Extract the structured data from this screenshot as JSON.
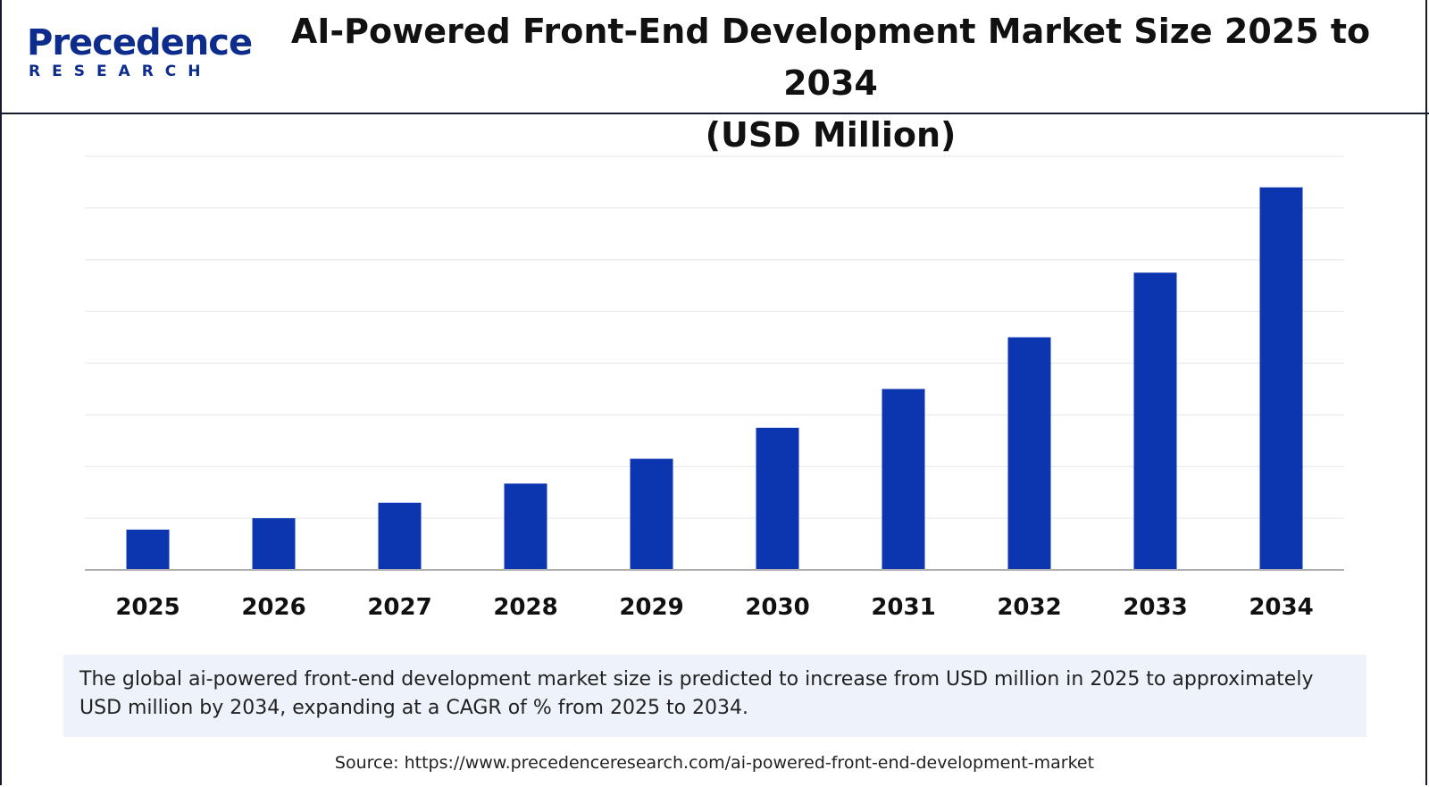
{
  "header": {
    "logo_main": "Precedence",
    "logo_sub": "RESEARCH",
    "title_line1": "AI-Powered Front-End Development Market Size 2025 to 2034",
    "title_line2": "(USD Million)"
  },
  "colors": {
    "bar": "#0c36b0",
    "brand": "#0d2c8c",
    "grid": "#e6e6e6",
    "axis": "#b0b0b0"
  },
  "chart_data": {
    "type": "bar",
    "title": "AI-Powered Front-End Development Market Size 2025 to 2034 (USD Million)",
    "xlabel": "",
    "ylabel": "",
    "categories": [
      "2025",
      "2026",
      "2027",
      "2028",
      "2029",
      "2030",
      "2031",
      "2032",
      "2033",
      "2034"
    ],
    "values": [
      0.78,
      1.0,
      1.3,
      1.67,
      2.15,
      2.75,
      3.5,
      4.5,
      5.75,
      7.4
    ],
    "ylim": [
      0,
      8
    ],
    "grid": true,
    "y_tick_labels_shown": false
  },
  "caption": {
    "text": "The global ai-powered front-end development market size is predicted to increase from USD  million in 2025 to approximately USD  million by 2034, expanding at a CAGR of % from 2025 to 2034."
  },
  "source": {
    "text": "Source: https://www.precedenceresearch.com/ai-powered-front-end-development-market"
  }
}
